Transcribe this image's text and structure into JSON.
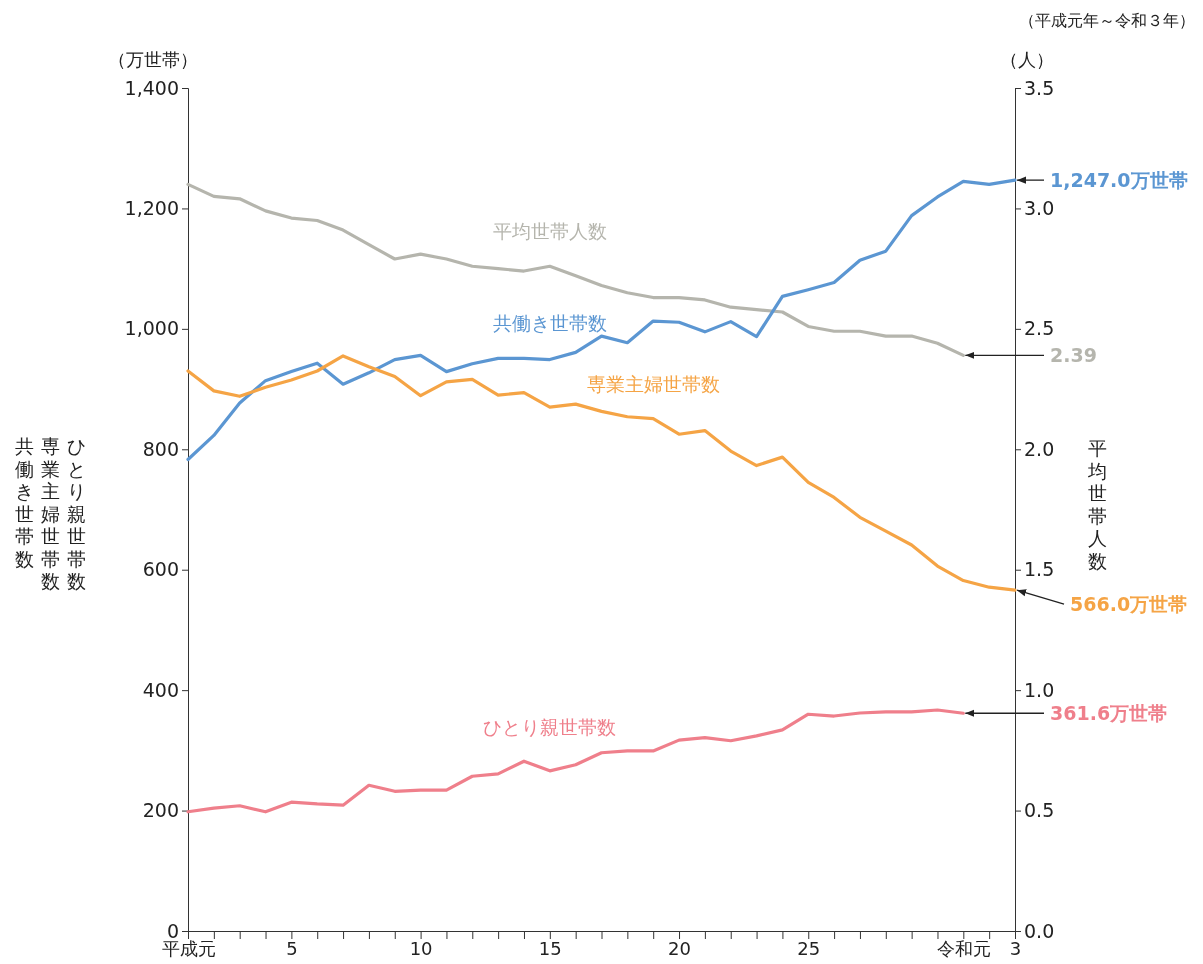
{
  "chart_data": {
    "type": "line",
    "subtitle": "（平成元年～令和３年）",
    "ylabel": "共働き世帯数",
    "y2label": "平均世帯人数",
    "annotations": [
      "（万世帯）",
      "（人）",
      "専業主婦世帯数",
      "ひとり親世帯数"
    ],
    "categories": [
      "平成元",
      null,
      null,
      null,
      "5",
      null,
      null,
      null,
      null,
      "10",
      null,
      null,
      null,
      null,
      "15",
      null,
      null,
      null,
      null,
      "20",
      null,
      null,
      null,
      null,
      "25",
      null,
      null,
      null,
      null,
      null,
      "令和元",
      null,
      "3"
    ],
    "ylim": [
      0,
      1400
    ],
    "yticks": [
      0,
      200,
      400,
      600,
      800,
      {
        "value": 1000,
        "label": "1,000"
      },
      {
        "value": 1200,
        "label": "1,200"
      },
      {
        "value": 1400,
        "label": "1,400"
      }
    ],
    "y2lim": [
      0,
      3.5
    ],
    "y2ticks": [
      {
        "value": 0,
        "label": "0.0"
      },
      0.5,
      {
        "value": 1,
        "label": "1.0"
      },
      1.5,
      {
        "value": 2,
        "label": "2.0"
      },
      2.5,
      {
        "value": 3,
        "label": "3.0"
      },
      3.5
    ],
    "grid": false,
    "marker": "none",
    "line_style": "solid",
    "series": [
      {
        "name": "平均世帯人数",
        "color": "#b5b5ad",
        "axis": "y2",
        "values": [
          3.1,
          3.05,
          3.04,
          2.99,
          2.96,
          2.95,
          2.91,
          2.85,
          2.79,
          2.81,
          2.79,
          2.76,
          2.75,
          2.74,
          2.76,
          2.72,
          2.68,
          2.65,
          2.63,
          2.63,
          2.62,
          2.59,
          2.58,
          2.57,
          2.51,
          2.49,
          2.49,
          2.47,
          2.47,
          2.44,
          2.39,
          null,
          null
        ],
        "value_labels": [
          null,
          null,
          null,
          null,
          null,
          null,
          null,
          null,
          null,
          null,
          null,
          null,
          null,
          null,
          null,
          null,
          null,
          null,
          null,
          null,
          null,
          null,
          null,
          null,
          null,
          null,
          null,
          null,
          null,
          null,
          "2.39",
          null,
          null
        ]
      },
      {
        "name": "共働き世帯数",
        "color": "#5b96d2",
        "values": [
          783,
          823,
          877,
          914,
          929,
          943,
          908,
          927,
          949,
          956,
          929,
          942,
          951,
          951,
          949,
          961,
          988,
          977,
          1013,
          1011,
          995,
          1012,
          987,
          1054,
          1065,
          1077,
          1114,
          1129,
          1188,
          1219,
          1245,
          1240,
          1247.0
        ],
        "value_labels": [
          null,
          null,
          null,
          null,
          null,
          null,
          null,
          null,
          null,
          null,
          null,
          null,
          null,
          null,
          null,
          null,
          null,
          null,
          null,
          null,
          null,
          null,
          null,
          null,
          null,
          null,
          null,
          null,
          null,
          null,
          null,
          null,
          "1,247.0万世帯"
        ]
      },
      {
        "name": "専業主婦世帯数",
        "color": "#f5a445",
        "values": [
          930,
          897,
          888,
          903,
          915,
          930,
          955,
          937,
          921,
          889,
          912,
          916,
          890,
          894,
          870,
          875,
          863,
          854,
          851,
          825,
          831,
          797,
          773,
          787,
          745,
          720,
          687,
          664,
          641,
          606,
          582,
          571,
          566.0
        ],
        "value_labels": [
          null,
          null,
          null,
          null,
          null,
          null,
          null,
          null,
          null,
          null,
          null,
          null,
          null,
          null,
          null,
          null,
          null,
          null,
          null,
          null,
          null,
          null,
          null,
          null,
          null,
          null,
          null,
          null,
          null,
          null,
          null,
          null,
          "566.0万世帯"
        ]
      },
      {
        "name": "ひとり親世帯数",
        "color": "#ef7f8b",
        "values": [
          198,
          204,
          208,
          198,
          214,
          211,
          209,
          242,
          232,
          234,
          234,
          257,
          261,
          282,
          266,
          276,
          296,
          299,
          299,
          317,
          321,
          316,
          324,
          334,
          360,
          357,
          362,
          364,
          364,
          367,
          361.6,
          null,
          null
        ],
        "value_labels": [
          null,
          null,
          null,
          null,
          null,
          null,
          null,
          null,
          null,
          null,
          null,
          null,
          null,
          null,
          null,
          null,
          null,
          null,
          null,
          null,
          null,
          null,
          null,
          null,
          null,
          null,
          null,
          null,
          null,
          null,
          "361.6万世帯",
          null,
          null
        ]
      }
    ]
  }
}
